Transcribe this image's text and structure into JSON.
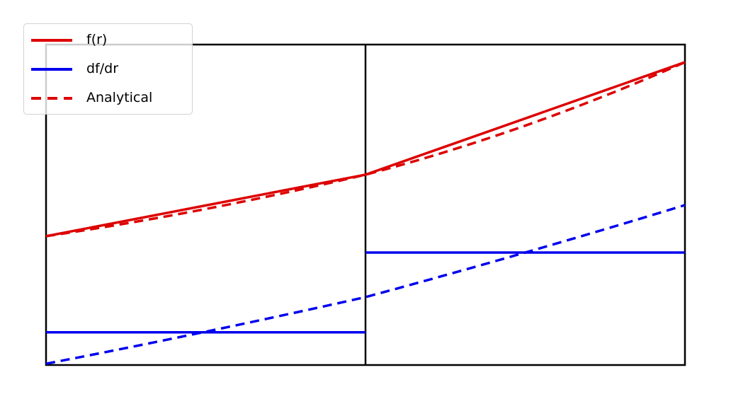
{
  "legend": {
    "items": [
      {
        "label": "f(r)",
        "color": "#dd0000",
        "dash": false
      },
      {
        "label": "df/dr",
        "color": "#0000ee",
        "dash": false
      },
      {
        "label": "Analytical",
        "color": "#dd0000",
        "dash": true
      }
    ]
  },
  "chart_data": {
    "type": "line",
    "title": "",
    "xlabel": "",
    "ylabel": "",
    "axis_ticks": "none (bare frame, no tick marks or tick labels)",
    "x_norm_range": [
      0,
      1
    ],
    "y_norm_range": [
      0,
      1
    ],
    "divider_x": 0.5,
    "frame_color": "#000000",
    "background_color": "#ffffff",
    "legend_position": "upper left",
    "series": [
      {
        "name": "f(r) piecewise-linear interpolation",
        "legend_label": "f(r)",
        "color": "#dd0000",
        "style": "solid",
        "smooth": false,
        "points": [
          [
            0,
            0.402
          ],
          [
            0.5,
            0.594
          ],
          [
            1,
            0.945
          ]
        ]
      },
      {
        "name": "Analytical f(r)",
        "legend_label": "Analytical",
        "color": "#dd0000",
        "style": "dashed",
        "smooth": true,
        "points": [
          [
            0,
            0.402
          ],
          [
            0.25,
            0.487
          ],
          [
            0.5,
            0.594
          ],
          [
            0.75,
            0.747
          ],
          [
            1,
            0.945
          ]
        ]
      },
      {
        "name": "df/dr piecewise-constant (per-cell slope)",
        "legend_label": "df/dr",
        "color": "#0000ee",
        "style": "solid",
        "smooth": false,
        "segments": [
          {
            "x0": 0,
            "x1": 0.5,
            "y": 0.102
          },
          {
            "x0": 0.5,
            "x1": 1,
            "y": 0.351
          }
        ]
      },
      {
        "name": "Analytical df/dr",
        "legend_label": "Analytical",
        "color": "#0000ee",
        "style": "dashed",
        "smooth": true,
        "points": [
          [
            0,
            0.004
          ],
          [
            0.25,
            0.104
          ],
          [
            0.5,
            0.212
          ],
          [
            0.75,
            0.351
          ],
          [
            1,
            0.499
          ]
        ]
      }
    ]
  }
}
